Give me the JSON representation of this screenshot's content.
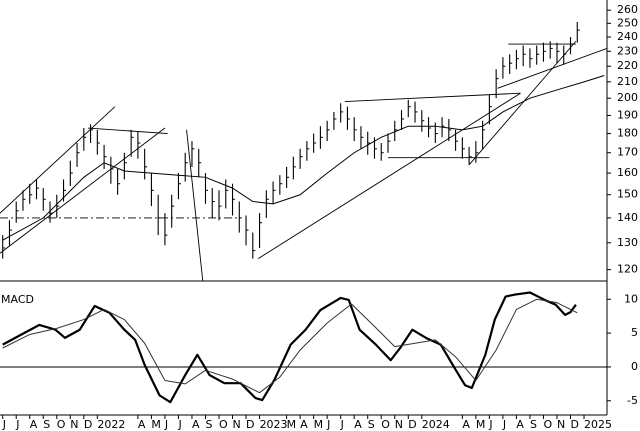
{
  "chart_data": [
    {
      "type": "ohlc",
      "log": true,
      "xlim": [
        -0.2,
        44.7
      ],
      "ylim": [
        116,
        268
      ],
      "yticks": [
        120,
        130,
        140,
        150,
        160,
        170,
        180,
        190,
        200,
        210,
        220,
        230,
        240,
        250,
        260
      ],
      "x": [
        0,
        0.5,
        1,
        1.5,
        2,
        2.5,
        3,
        3.5,
        4,
        4.5,
        5,
        5.5,
        6,
        6.5,
        7,
        7.5,
        8,
        8.5,
        9,
        9.5,
        10,
        10.5,
        11,
        11.5,
        12,
        12.5,
        13,
        13.5,
        14,
        14.5,
        15,
        15.5,
        16,
        16.5,
        17,
        17.5,
        18,
        18.5,
        19,
        19.5,
        20,
        20.5,
        21,
        21.5,
        22,
        22.5,
        23,
        23.5,
        24,
        24.5,
        25,
        25.5,
        26,
        26.5,
        27,
        27.5,
        28,
        28.5,
        29,
        29.5,
        30,
        30.5,
        31,
        31.5,
        32,
        32.5,
        33,
        33.5,
        34,
        34.5,
        35,
        35.5,
        36,
        36.5,
        37,
        37.5,
        38,
        38.5,
        39,
        39.5,
        40,
        40.5,
        41,
        41.5,
        42,
        42.5
      ],
      "high": [
        133,
        139,
        147,
        152,
        155,
        157,
        153,
        147,
        150,
        157,
        166,
        175,
        183,
        185,
        182,
        174,
        168,
        162,
        170,
        182,
        181,
        172,
        160,
        150,
        142,
        150,
        160,
        170,
        176,
        172,
        160,
        153,
        152,
        157,
        155,
        147,
        141,
        134,
        142,
        152,
        156,
        159,
        163,
        168,
        172,
        176,
        180,
        184,
        187,
        192,
        197,
        195,
        189,
        184,
        181,
        178,
        175,
        180,
        187,
        193,
        199,
        198,
        193,
        189,
        186,
        189,
        188,
        182,
        178,
        173,
        176,
        187,
        202,
        218,
        226,
        228,
        231,
        234,
        232,
        234,
        236,
        237,
        236,
        234,
        240,
        251
      ],
      "low": [
        124,
        129,
        138,
        143,
        146,
        148,
        143,
        138,
        140,
        147,
        154,
        163,
        171,
        175,
        169,
        162,
        155,
        150,
        157,
        168,
        167,
        157,
        145,
        133,
        129,
        136,
        148,
        156,
        163,
        158,
        146,
        140,
        139,
        144,
        141,
        134,
        129,
        124,
        128,
        140,
        146,
        150,
        153,
        157,
        162,
        166,
        170,
        172,
        176,
        182,
        186,
        182,
        176,
        172,
        169,
        167,
        166,
        170,
        176,
        182,
        189,
        186,
        181,
        178,
        175,
        178,
        176,
        171,
        167,
        164,
        165,
        172,
        185,
        200,
        212,
        215,
        218,
        220,
        219,
        221,
        223,
        225,
        222,
        221,
        228,
        236
      ],
      "close": [
        128,
        135,
        143,
        148,
        150,
        153,
        148,
        142,
        145,
        152,
        160,
        170,
        178,
        182,
        175,
        168,
        162,
        155,
        165,
        178,
        175,
        163,
        152,
        140,
        133,
        145,
        155,
        165,
        172,
        165,
        152,
        147,
        145,
        152,
        148,
        140,
        135,
        127,
        138,
        148,
        152,
        155,
        158,
        163,
        168,
        172,
        175,
        178,
        182,
        188,
        192,
        188,
        182,
        178,
        175,
        172,
        170,
        176,
        182,
        188,
        195,
        192,
        187,
        183,
        180,
        184,
        182,
        176,
        172,
        168,
        170,
        182,
        195,
        212,
        220,
        222,
        225,
        228,
        225,
        228,
        230,
        232,
        230,
        228,
        235,
        245
      ],
      "moving_average": {
        "x": [
          0,
          3,
          6,
          7.5,
          9,
          11,
          13,
          15,
          17,
          18.5,
          20,
          22,
          24,
          26,
          28,
          30,
          32,
          34,
          35.5,
          37,
          39,
          41,
          43,
          44.5
        ],
        "values": [
          131,
          140,
          158,
          165,
          161,
          160,
          159,
          158,
          153,
          147,
          146,
          150,
          160,
          170,
          178,
          184,
          184,
          182,
          184,
          192,
          200,
          205,
          210,
          214
        ]
      },
      "trendlines": [
        {
          "x": [
            -0.2,
            8.3
          ],
          "y": [
            142,
            195
          ]
        },
        {
          "x": [
            -0.2,
            12
          ],
          "y": [
            126,
            183
          ]
        },
        {
          "x": [
            -0.2,
            17.5
          ],
          "y": [
            140,
            140
          ],
          "style": "dashdot"
        },
        {
          "x": [
            6.3,
            12.2
          ],
          "y": [
            183,
            180
          ]
        },
        {
          "x": [
            13.6,
            14.8
          ],
          "y": [
            182,
            116
          ]
        },
        {
          "x": [
            18.9,
            38.3
          ],
          "y": [
            124,
            203
          ]
        },
        {
          "x": [
            25.3,
            38.3
          ],
          "y": [
            198,
            203
          ]
        },
        {
          "x": [
            28.5,
            36
          ],
          "y": [
            167.5,
            167.5
          ]
        },
        {
          "x": [
            37.4,
            42.4
          ],
          "y": [
            235,
            235
          ]
        },
        {
          "x": [
            34.5,
            42.4
          ],
          "y": [
            164,
            237
          ]
        },
        {
          "x": [
            36.6,
            44.7
          ],
          "y": [
            206,
            232
          ]
        }
      ]
    },
    {
      "type": "line",
      "title": "MACD",
      "xlim": [
        -0.2,
        44.7
      ],
      "ylim": [
        -7.1,
        12.7
      ],
      "yticks": [
        10,
        5,
        0,
        -5
      ],
      "zero_line": true,
      "xticks": [
        {
          "value": 0,
          "label": "J"
        },
        {
          "value": 1,
          "label": "J"
        },
        {
          "value": 2,
          "label": "A"
        },
        {
          "value": 3,
          "label": "S"
        },
        {
          "value": 4,
          "label": "O"
        },
        {
          "value": 5,
          "label": "N"
        },
        {
          "value": 6,
          "label": "D"
        },
        {
          "value": 7,
          "label": "2022"
        },
        {
          "value": 10,
          "label": "A"
        },
        {
          "value": 11,
          "label": "M"
        },
        {
          "value": 12,
          "label": "J"
        },
        {
          "value": 13,
          "label": "J"
        },
        {
          "value": 14,
          "label": "A"
        },
        {
          "value": 15,
          "label": "S"
        },
        {
          "value": 16,
          "label": "O"
        },
        {
          "value": 17,
          "label": "N"
        },
        {
          "value": 18,
          "label": "D"
        },
        {
          "value": 19,
          "label": "2023"
        },
        {
          "value": 21,
          "label": "M"
        },
        {
          "value": 22,
          "label": "A"
        },
        {
          "value": 23,
          "label": "M"
        },
        {
          "value": 24,
          "label": "J"
        },
        {
          "value": 25,
          "label": "J"
        },
        {
          "value": 26,
          "label": "A"
        },
        {
          "value": 27,
          "label": "S"
        },
        {
          "value": 28,
          "label": "O"
        },
        {
          "value": 29,
          "label": "N"
        },
        {
          "value": 30,
          "label": "D"
        },
        {
          "value": 31,
          "label": "2024"
        },
        {
          "value": 34,
          "label": "A"
        },
        {
          "value": 35,
          "label": "M"
        },
        {
          "value": 36,
          "label": "J"
        },
        {
          "value": 37,
          "label": "J"
        },
        {
          "value": 38,
          "label": "A"
        },
        {
          "value": 39,
          "label": "S"
        },
        {
          "value": 40,
          "label": "O"
        },
        {
          "value": 41,
          "label": "N"
        },
        {
          "value": 42,
          "label": "D"
        },
        {
          "value": 43,
          "label": "2025"
        }
      ],
      "series": [
        {
          "color": "#000000",
          "width": 2.2,
          "x": [
            0,
            1.3,
            2.7,
            3.9,
            4.6,
            5.7,
            6.8,
            7.9,
            9,
            9.8,
            10.5,
            11.6,
            12.4,
            13.5,
            14.4,
            15.3,
            16.4,
            17.6,
            18.7,
            19.2,
            20.1,
            21.3,
            22.4,
            23.5,
            25,
            25.6,
            26.4,
            27.6,
            28.7,
            29.4,
            30.3,
            31.3,
            32.4,
            33.5,
            34.2,
            34.7,
            35.7,
            36.4,
            37.2,
            37.9,
            39,
            40.1,
            40.9,
            41.6,
            42,
            42.4
          ],
          "values": [
            3.3,
            4.7,
            6.2,
            5.5,
            4.3,
            5.5,
            9,
            8,
            5.5,
            4,
            0.3,
            -4.2,
            -5.2,
            -1.2,
            1.8,
            -1.2,
            -2.4,
            -2.4,
            -4.6,
            -4.9,
            -1.9,
            3.3,
            5.5,
            8.4,
            10.2,
            9.9,
            5.5,
            3.3,
            1,
            2.8,
            5.5,
            4.3,
            3.3,
            -0.4,
            -2.7,
            -3.1,
            1.8,
            7,
            10.4,
            10.7,
            11,
            9.9,
            9.2,
            7.7,
            8.1,
            9.2
          ]
        },
        {
          "color": "#333333",
          "width": 1,
          "x": [
            0,
            2,
            4,
            6,
            7.5,
            9,
            10.5,
            12,
            13.5,
            15,
            17,
            19,
            20.5,
            22,
            24,
            25.8,
            27.5,
            29,
            30.5,
            32,
            33.5,
            35,
            36.5,
            38,
            39.5,
            41,
            42.5
          ],
          "values": [
            2.8,
            4.8,
            5.7,
            7,
            8.5,
            7,
            3.5,
            -2,
            -2.5,
            -0.5,
            -1.8,
            -3.8,
            -1.5,
            2.5,
            6.5,
            9.3,
            6,
            3,
            3.5,
            4,
            1.5,
            -2,
            2.5,
            8.5,
            10,
            9.5,
            8
          ]
        }
      ]
    }
  ]
}
